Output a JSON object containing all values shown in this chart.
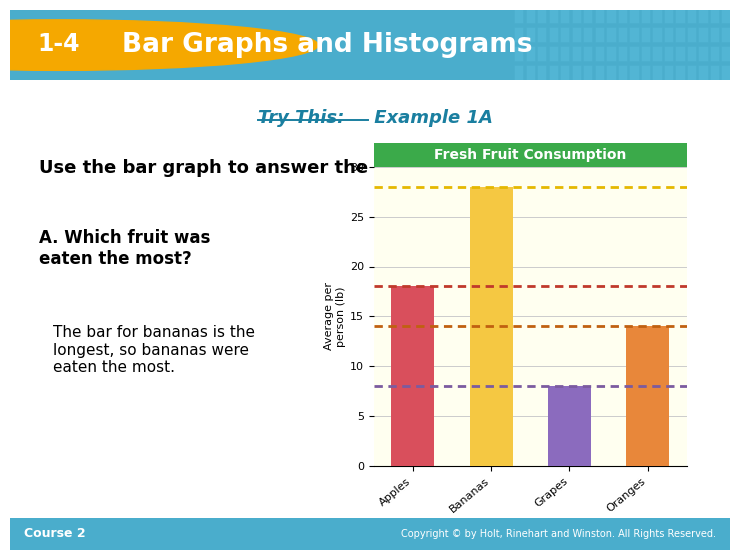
{
  "title_badge": "1-4",
  "title_badge_bg": "#F5A800",
  "header_text": "Bar Graphs and Histograms",
  "header_bg": "#4AADCC",
  "header_tile_bg": "#5BBEDD",
  "subtitle_try": "Try This:",
  "subtitle_rest": " Example 1A",
  "subtitle_color": "#1A7FA0",
  "body_line1": "Use the bar graph to answer the question.",
  "question_bold": "A. Which fruit was\neaten the most?",
  "answer_text": "The bar for bananas is the\nlongest, so bananas were\neaten the most.",
  "chart_title": "Fresh Fruit Consumption",
  "chart_title_bg": "#3BAA4A",
  "chart_title_color": "#FFFFFF",
  "chart_bg": "#FFFFF0",
  "bar_categories": [
    "Apples",
    "Bananas",
    "Grapes",
    "Oranges"
  ],
  "bar_values": [
    18,
    28,
    8,
    14
  ],
  "bar_colors": [
    "#D94F5C",
    "#F5C842",
    "#8B6BBE",
    "#E8873A"
  ],
  "dotted_colors": [
    "#C0392B",
    "#E5B800",
    "#7B5BA0",
    "#C06010"
  ],
  "ylabel": "Average per\nperson (lb)",
  "ylim": [
    0,
    30
  ],
  "yticks": [
    0,
    5,
    10,
    15,
    20,
    25,
    30
  ],
  "footer_left": "Course 2",
  "footer_right": "Copyright © by Holt, Rinehart and Winston. All Rights Reserved.",
  "footer_bg": "#4AADCC",
  "slide_bg": "#FFFFFF",
  "grid_color": "#CCCCCC"
}
